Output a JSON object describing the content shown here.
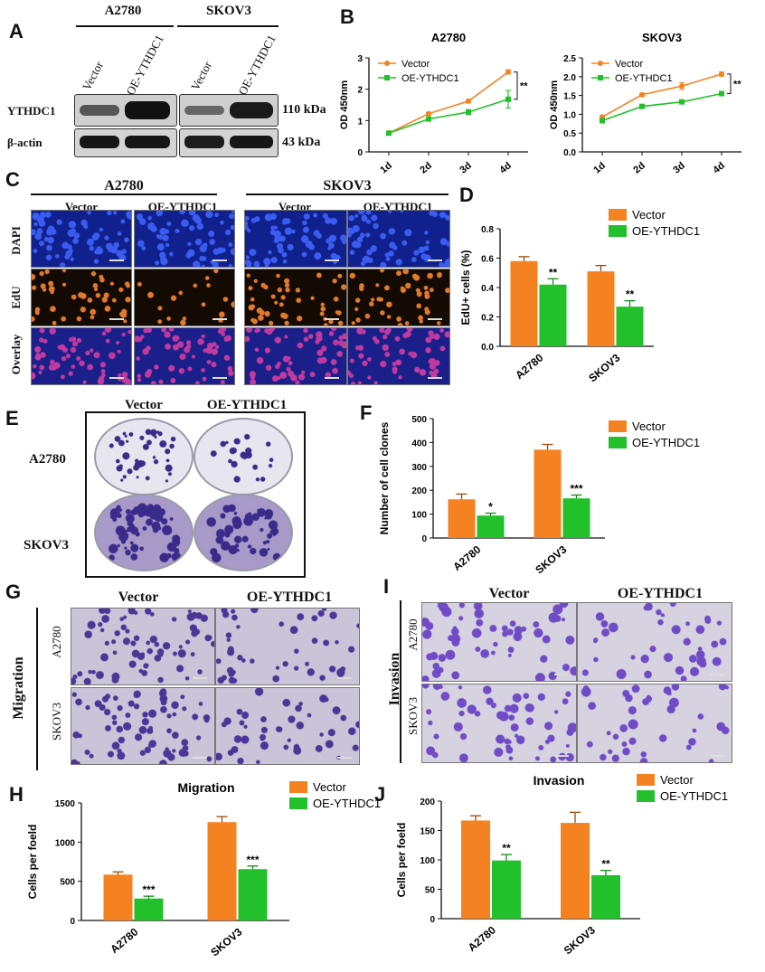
{
  "panel_letters": {
    "A": "A",
    "B": "B",
    "C": "C",
    "D": "D",
    "E": "E",
    "F": "F",
    "G": "G",
    "H": "H",
    "I": "I",
    "J": "J"
  },
  "panelA": {
    "cell_lines": [
      "A2780",
      "SKOV3"
    ],
    "lanes": [
      "Vector",
      "OE-YTHDC1",
      "Vector",
      "OE-YTHDC1"
    ],
    "proteins": [
      "YTHDC1",
      "β-actin"
    ],
    "sizes": [
      "110 kDa",
      "43 kDa"
    ]
  },
  "panelC": {
    "cell_lines": [
      "A2780",
      "SKOV3"
    ],
    "columns": [
      "Vector",
      "OE-YTHDC1",
      "Vector",
      "OE-YTHDC1"
    ],
    "rows": [
      "DAPI",
      "EdU",
      "Overlay"
    ]
  },
  "panelE": {
    "columns": [
      "Vector",
      "OE-YTHDC1"
    ],
    "rows": [
      "A2780",
      "SKOV3"
    ]
  },
  "panelG": {
    "columns": [
      "Vector",
      "OE-YTHDC1"
    ],
    "rows": [
      "A2780",
      "SKOV3"
    ],
    "side_label": "Migration"
  },
  "panelI": {
    "columns": [
      "Vector",
      "OE-YTHDC1"
    ],
    "rows": [
      "A2780",
      "SKOV3"
    ],
    "side_label": "Invasion"
  },
  "colors": {
    "vector": "#f58220",
    "oe": "#22c02a",
    "dapi": "#1a2bd0",
    "edu": "#e2722a",
    "crystal": "#6a4bb4"
  },
  "chart_data": [
    {
      "id": "B1",
      "type": "line",
      "title": "A2780",
      "categories": [
        "1d",
        "2d",
        "3d",
        "4d"
      ],
      "ylabel": "OD 450nm",
      "ylim": [
        0,
        3
      ],
      "yticks": [
        0,
        1,
        2,
        3
      ],
      "series": [
        {
          "name": "Vector",
          "values": [
            0.6,
            1.22,
            1.62,
            2.55
          ],
          "errors": [
            0.03,
            0.04,
            0.05,
            0.07
          ]
        },
        {
          "name": "OE-YTHDC1",
          "values": [
            0.6,
            1.05,
            1.27,
            1.68
          ],
          "errors": [
            0.03,
            0.04,
            0.08,
            0.28
          ]
        }
      ],
      "annotation": "**"
    },
    {
      "id": "B2",
      "type": "line",
      "title": "SKOV3",
      "categories": [
        "1d",
        "2d",
        "3d",
        "4d"
      ],
      "ylabel": "OD 450nm",
      "ylim": [
        0,
        2.5
      ],
      "yticks": [
        0.0,
        0.5,
        1.0,
        1.5,
        2.0,
        2.5
      ],
      "series": [
        {
          "name": "Vector",
          "values": [
            0.93,
            1.52,
            1.75,
            2.07
          ],
          "errors": [
            0.03,
            0.04,
            0.09,
            0.06
          ]
        },
        {
          "name": "OE-YTHDC1",
          "values": [
            0.83,
            1.21,
            1.33,
            1.55
          ],
          "errors": [
            0.03,
            0.03,
            0.04,
            0.06
          ]
        }
      ],
      "annotation": "**"
    },
    {
      "id": "D",
      "type": "bar",
      "categories": [
        "A2780",
        "SKOV3"
      ],
      "ylabel": "EdU+ cells (%)",
      "ylim": [
        0,
        0.8
      ],
      "yticks": [
        0.0,
        0.2,
        0.4,
        0.6,
        0.8
      ],
      "series": [
        {
          "name": "Vector",
          "values": [
            0.58,
            0.51
          ],
          "errors": [
            0.03,
            0.04
          ]
        },
        {
          "name": "OE-YTHDC1",
          "values": [
            0.42,
            0.27
          ],
          "errors": [
            0.04,
            0.04
          ]
        }
      ],
      "significance": [
        "**",
        "**"
      ]
    },
    {
      "id": "F",
      "type": "bar",
      "categories": [
        "A2780",
        "SKOV3"
      ],
      "ylabel": "Number of cell clones",
      "ylim": [
        0,
        500
      ],
      "yticks": [
        0,
        100,
        200,
        300,
        400,
        500
      ],
      "series": [
        {
          "name": "Vector",
          "values": [
            162,
            370
          ],
          "errors": [
            22,
            22
          ]
        },
        {
          "name": "OE-YTHDC1",
          "values": [
            94,
            166
          ],
          "errors": [
            10,
            14
          ]
        }
      ],
      "significance": [
        "*",
        "***"
      ]
    },
    {
      "id": "H",
      "type": "bar",
      "title": "Migration",
      "categories": [
        "A2780",
        "SKOV3"
      ],
      "ylabel": "Cells per foeld",
      "ylim": [
        0,
        1500
      ],
      "yticks": [
        0,
        500,
        1000,
        1500
      ],
      "series": [
        {
          "name": "Vector",
          "values": [
            585,
            1255
          ],
          "errors": [
            35,
            70
          ]
        },
        {
          "name": "OE-YTHDC1",
          "values": [
            280,
            655
          ],
          "errors": [
            30,
            40
          ]
        }
      ],
      "significance": [
        "***",
        "***"
      ]
    },
    {
      "id": "J",
      "type": "bar",
      "title": "Invasion",
      "categories": [
        "A2780",
        "SKOV3"
      ],
      "ylabel": "Cells per foeld",
      "ylim": [
        0,
        200
      ],
      "yticks": [
        0,
        50,
        100,
        150,
        200
      ],
      "series": [
        {
          "name": "Vector",
          "values": [
            167,
            163
          ],
          "errors": [
            8,
            18
          ]
        },
        {
          "name": "OE-YTHDC1",
          "values": [
            99,
            74
          ],
          "errors": [
            10,
            8
          ]
        }
      ],
      "significance": [
        "**",
        "**"
      ]
    }
  ]
}
